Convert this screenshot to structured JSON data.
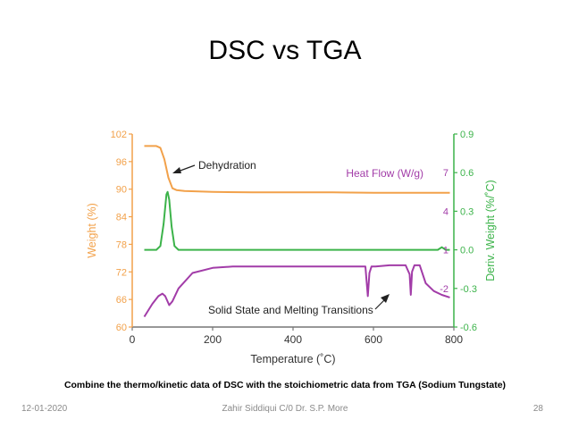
{
  "slide": {
    "title": "DSC vs TGA",
    "caption": "Combine the thermo/kinetic data of DSC with the stoichiometric data from TGA (Sodium Tungstate)",
    "footer_date": "12-01-2020",
    "footer_author": "Zahir Siddiqui C/0 Dr. S.P. More",
    "page_number": "28"
  },
  "chart_data": {
    "type": "line",
    "xlabel": "Temperature (˚C)",
    "xlim": [
      0,
      800
    ],
    "x_ticks": [
      "0",
      "200",
      "400",
      "600",
      "800"
    ],
    "ylabel_left": "Weight (%)",
    "ylim_left": [
      60,
      102
    ],
    "y_ticks_left": [
      "60",
      "66",
      "72",
      "78",
      "84",
      "90",
      "96",
      "102"
    ],
    "ylabel_right": "Deriv. Weight (%/˚C)",
    "ylim_right": [
      -0.6,
      0.9
    ],
    "y_ticks_right": [
      "-0.6",
      "-0.3",
      "0.0",
      "0.3",
      "0.6",
      "0.9"
    ],
    "heat_flow_ticks": [
      {
        "label": "7",
        "deriv": 0.6
      },
      {
        "label": "4",
        "deriv": 0.3
      },
      {
        "label": "1",
        "deriv": 0.0
      },
      {
        "label": "-2",
        "deriv": -0.3
      }
    ],
    "annotations": {
      "dehydration": "Dehydration",
      "heat_flow": "Heat Flow (W/g)",
      "transitions": "Solid State and Melting Transitions"
    },
    "colors": {
      "weight": "#f2a14a",
      "deriv": "#3cb34a",
      "heat_flow": "#a23ca8",
      "axis": "#777777",
      "left_axis": "#f2a14a",
      "right_axis": "#3cb34a"
    },
    "series": [
      {
        "name": "Weight (%)",
        "axis": "left",
        "x": [
          30,
          60,
          70,
          80,
          90,
          100,
          110,
          130,
          200,
          300,
          400,
          500,
          600,
          700,
          790
        ],
        "y": [
          99.4,
          99.4,
          99.0,
          96.5,
          92.5,
          90.2,
          89.8,
          89.6,
          89.4,
          89.3,
          89.3,
          89.3,
          89.2,
          89.2,
          89.2
        ]
      },
      {
        "name": "Deriv. Weight (%/˚C)",
        "axis": "right",
        "x": [
          30,
          60,
          70,
          78,
          85,
          88,
          92,
          98,
          105,
          115,
          140,
          300,
          500,
          700,
          760,
          770,
          780,
          790
        ],
        "y": [
          0.0,
          0.0,
          0.03,
          0.2,
          0.43,
          0.45,
          0.39,
          0.18,
          0.03,
          0.0,
          0.0,
          0.0,
          0.0,
          0.0,
          0.0,
          0.02,
          0.0,
          0.0
        ]
      },
      {
        "name": "Heat Flow (W/g)",
        "axis": "right",
        "x": [
          30,
          50,
          65,
          75,
          82,
          92,
          100,
          115,
          150,
          200,
          250,
          300,
          400,
          500,
          580,
          583,
          586,
          590,
          595,
          605,
          640,
          680,
          690,
          693,
          696,
          702,
          715,
          730,
          750,
          770,
          790
        ],
        "y": [
          -0.52,
          -0.42,
          -0.36,
          -0.34,
          -0.36,
          -0.43,
          -0.4,
          -0.3,
          -0.18,
          -0.14,
          -0.13,
          -0.13,
          -0.13,
          -0.13,
          -0.13,
          -0.25,
          -0.36,
          -0.18,
          -0.13,
          -0.13,
          -0.12,
          -0.12,
          -0.19,
          -0.35,
          -0.17,
          -0.12,
          -0.12,
          -0.26,
          -0.32,
          -0.35,
          -0.37
        ]
      }
    ]
  }
}
